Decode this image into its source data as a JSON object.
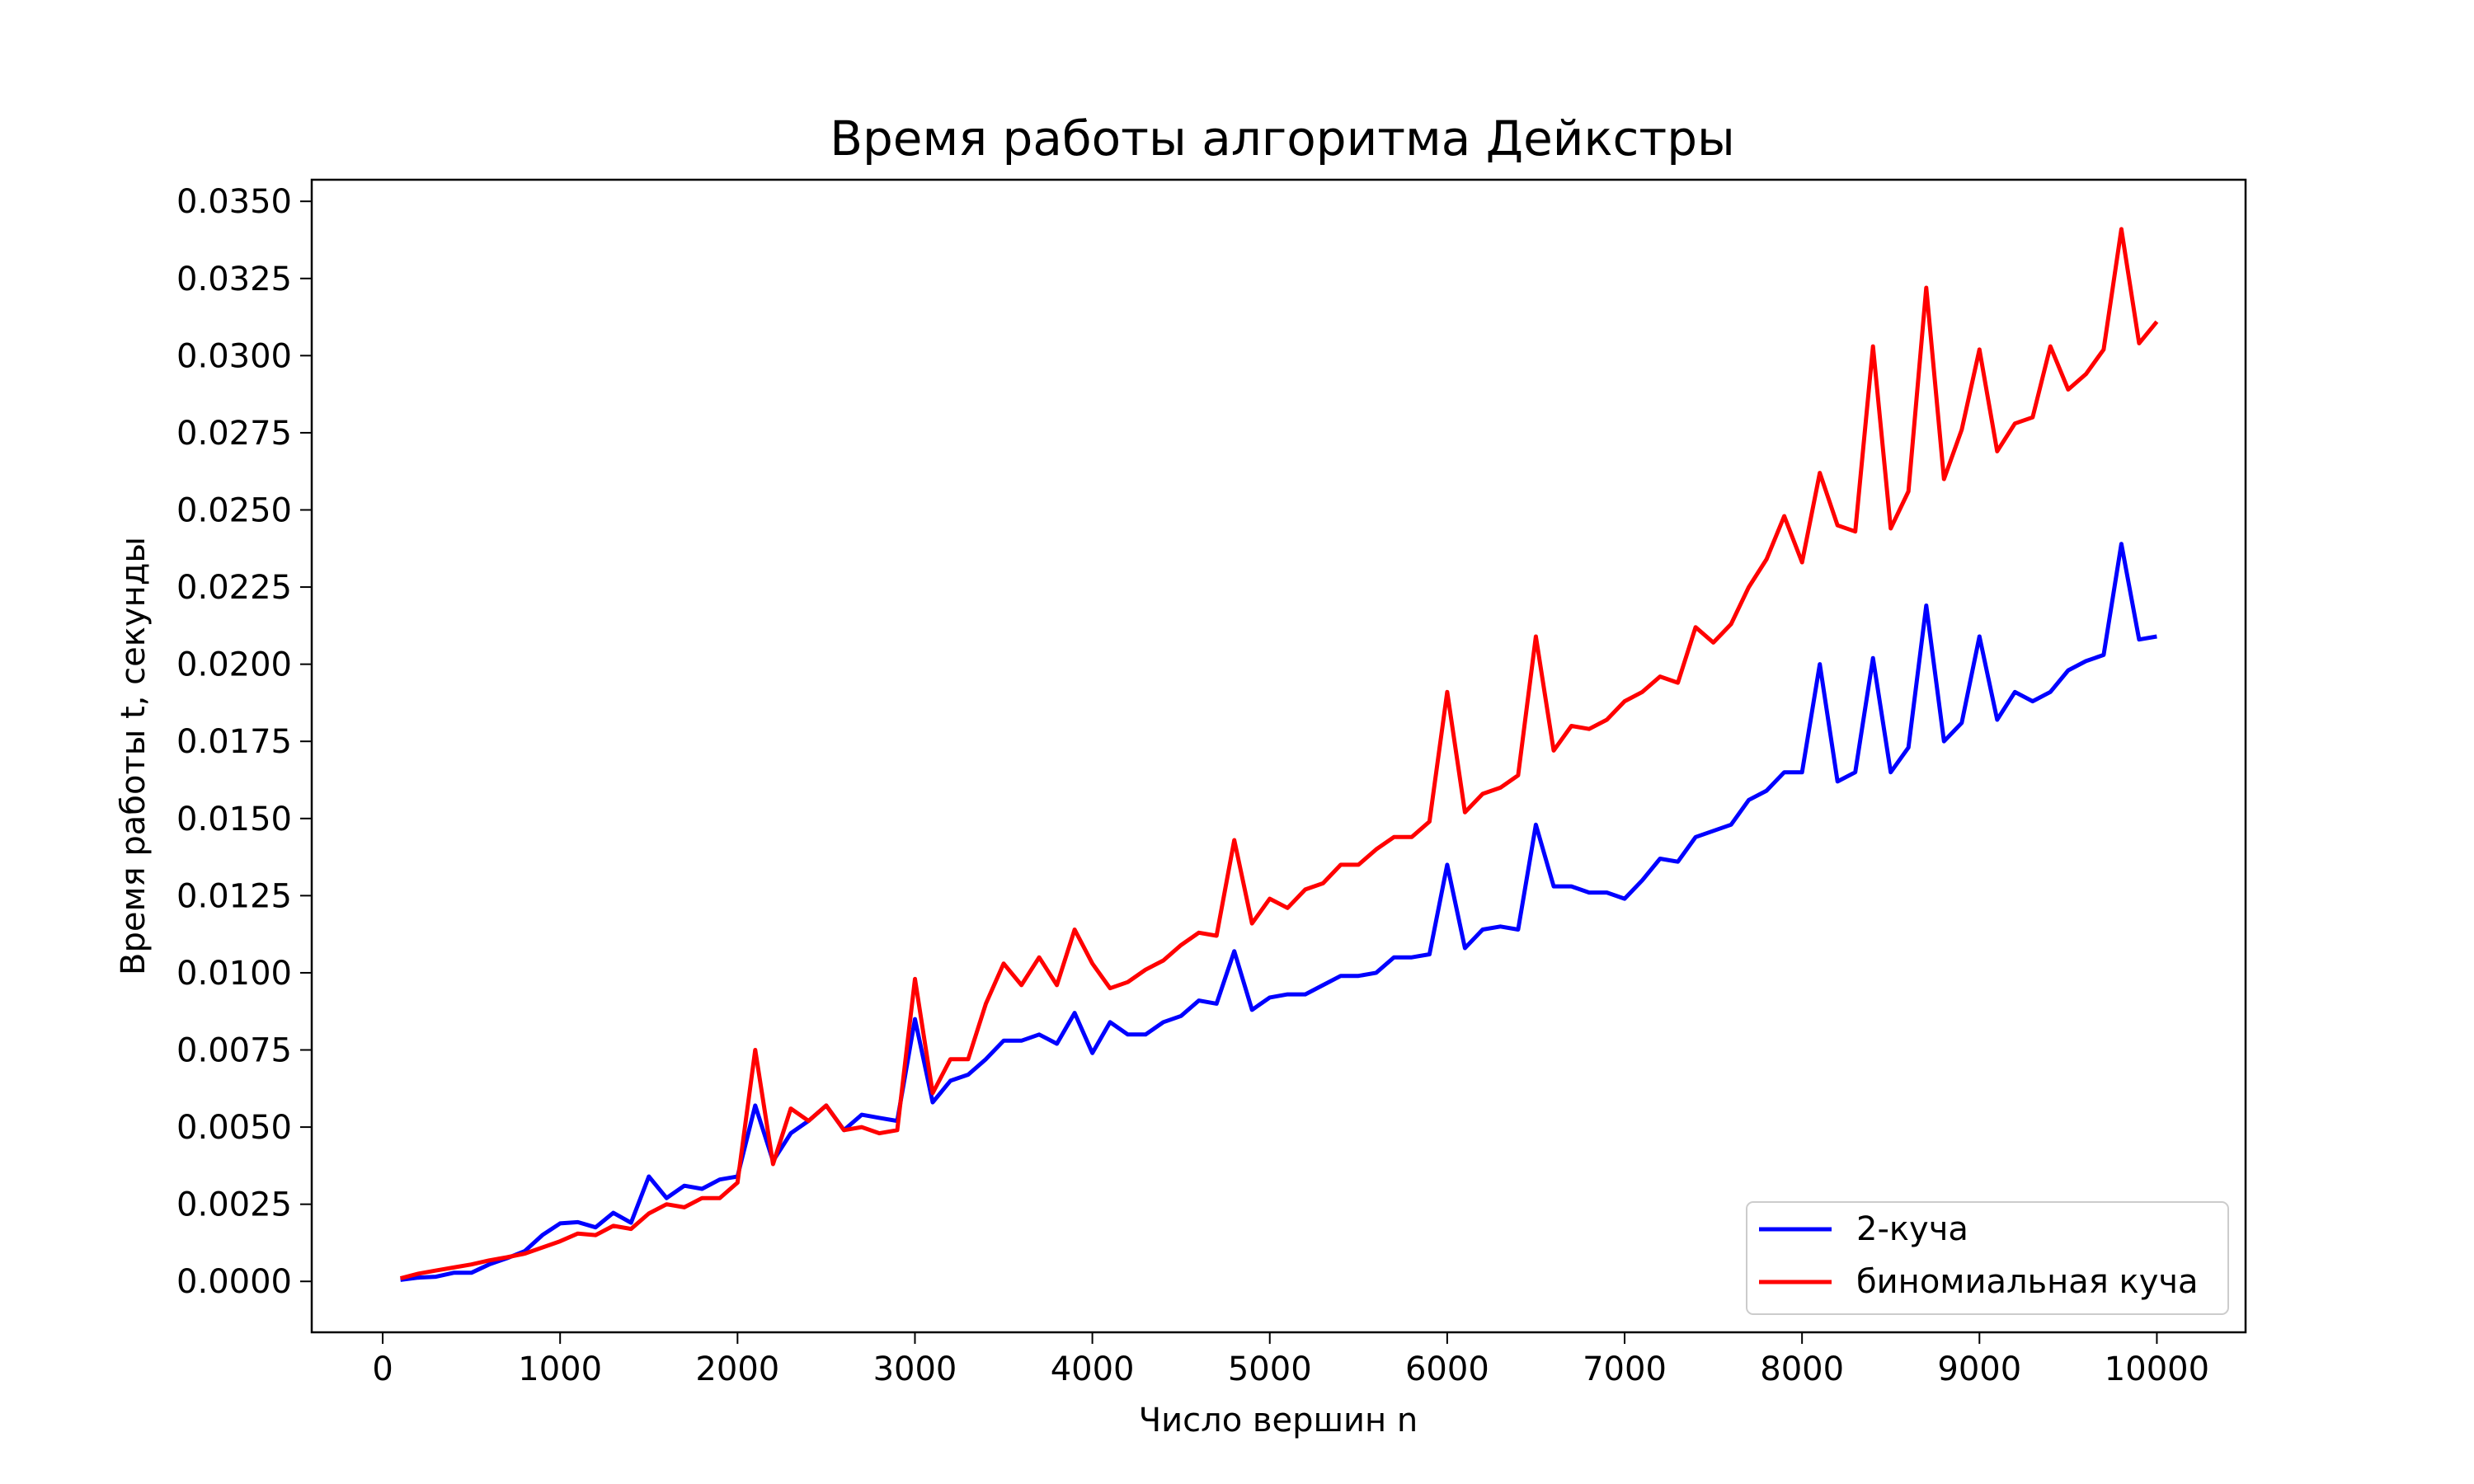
{
  "chart_data": {
    "type": "line",
    "title": "Время работы алгоритма Дейкстры",
    "xlabel": "Число вершин n",
    "ylabel": "Время работы t, секунды",
    "xlim": [
      -400,
      10500
    ],
    "ylim": [
      -0.00165,
      0.0357
    ],
    "xticks": [
      0,
      1000,
      2000,
      3000,
      4000,
      5000,
      6000,
      7000,
      8000,
      9000,
      10000
    ],
    "xtick_labels": [
      "0",
      "1000",
      "2000",
      "3000",
      "4000",
      "5000",
      "6000",
      "7000",
      "8000",
      "9000",
      "10000"
    ],
    "yticks": [
      0,
      0.0025,
      0.005,
      0.0075,
      0.01,
      0.0125,
      0.015,
      0.0175,
      0.02,
      0.0225,
      0.025,
      0.0275,
      0.03,
      0.0325,
      0.035
    ],
    "ytick_labels": [
      "0.0000",
      "0.0025",
      "0.0050",
      "0.0075",
      "0.0100",
      "0.0125",
      "0.0150",
      "0.0175",
      "0.0200",
      "0.0225",
      "0.0250",
      "0.0275",
      "0.0300",
      "0.0325",
      "0.0350"
    ],
    "grid": false,
    "legend_position": "lower-right",
    "x": [
      100,
      200,
      300,
      400,
      500,
      600,
      700,
      800,
      900,
      1000,
      1100,
      1200,
      1300,
      1400,
      1500,
      1600,
      1700,
      1800,
      1900,
      2000,
      2100,
      2200,
      2300,
      2400,
      2500,
      2600,
      2700,
      2800,
      2900,
      3000,
      3100,
      3200,
      3300,
      3400,
      3500,
      3600,
      3700,
      3800,
      3900,
      4000,
      4100,
      4200,
      4300,
      4400,
      4500,
      4600,
      4700,
      4800,
      4900,
      5000,
      5100,
      5200,
      5300,
      5400,
      5500,
      5600,
      5700,
      5800,
      5900,
      6000,
      6100,
      6200,
      6300,
      6400,
      6500,
      6600,
      6700,
      6800,
      6900,
      7000,
      7100,
      7200,
      7300,
      7400,
      7500,
      7600,
      7700,
      7800,
      7900,
      8000,
      8100,
      8200,
      8300,
      8400,
      8500,
      8600,
      8700,
      8800,
      8900,
      9000,
      9100,
      9200,
      9300,
      9400,
      9500,
      9600,
      9700,
      9800,
      9900,
      10000
    ],
    "series": [
      {
        "name": "2-куча",
        "color": "#0000ff",
        "values": [
          5e-05,
          0.00012,
          0.00015,
          0.00028,
          0.00028,
          0.00055,
          0.00075,
          0.00098,
          0.0015,
          0.00188,
          0.00192,
          0.00175,
          0.00222,
          0.0019,
          0.0034,
          0.0027,
          0.0031,
          0.003,
          0.0033,
          0.0034,
          0.0057,
          0.0039,
          0.0048,
          0.0052,
          0.0057,
          0.0049,
          0.0054,
          0.0053,
          0.0052,
          0.0085,
          0.0058,
          0.0065,
          0.0067,
          0.0072,
          0.0078,
          0.0078,
          0.008,
          0.0077,
          0.0087,
          0.0074,
          0.0084,
          0.008,
          0.008,
          0.0084,
          0.0086,
          0.0091,
          0.009,
          0.0107,
          0.0088,
          0.0092,
          0.0093,
          0.0093,
          0.0096,
          0.0099,
          0.0099,
          0.01,
          0.0105,
          0.0105,
          0.0106,
          0.0135,
          0.0108,
          0.0114,
          0.0115,
          0.0114,
          0.0148,
          0.0128,
          0.0128,
          0.0126,
          0.0126,
          0.0124,
          0.013,
          0.0137,
          0.0136,
          0.0144,
          0.0146,
          0.0148,
          0.0156,
          0.0159,
          0.0165,
          0.0165,
          0.02,
          0.0162,
          0.0165,
          0.0202,
          0.0165,
          0.0173,
          0.0219,
          0.0175,
          0.0181,
          0.0209,
          0.0182,
          0.0191,
          0.0188,
          0.0191,
          0.0198,
          0.0201,
          0.0203,
          0.0239,
          0.0208,
          0.0209
        ]
      },
      {
        "name": "биномиальная куча",
        "color": "#ff0000",
        "values": [
          0.0001,
          0.00025,
          0.00035,
          0.00045,
          0.00055,
          0.00068,
          0.00078,
          0.0009,
          0.0011,
          0.0013,
          0.00155,
          0.0015,
          0.0018,
          0.0017,
          0.0022,
          0.0025,
          0.0024,
          0.0027,
          0.0027,
          0.0032,
          0.0075,
          0.0038,
          0.0056,
          0.0052,
          0.0057,
          0.0049,
          0.005,
          0.0048,
          0.0049,
          0.0098,
          0.0061,
          0.0072,
          0.0072,
          0.009,
          0.0103,
          0.0096,
          0.0105,
          0.0096,
          0.0114,
          0.0103,
          0.0095,
          0.0097,
          0.0101,
          0.0104,
          0.0109,
          0.0113,
          0.0112,
          0.0143,
          0.0116,
          0.0124,
          0.0121,
          0.0127,
          0.0129,
          0.0135,
          0.0135,
          0.014,
          0.0144,
          0.0144,
          0.0149,
          0.0191,
          0.0152,
          0.0158,
          0.016,
          0.0164,
          0.0209,
          0.0172,
          0.018,
          0.0179,
          0.0182,
          0.0188,
          0.0191,
          0.0196,
          0.0194,
          0.0212,
          0.0207,
          0.0213,
          0.0225,
          0.0234,
          0.0248,
          0.0233,
          0.0262,
          0.0245,
          0.0243,
          0.0303,
          0.0244,
          0.0256,
          0.0322,
          0.026,
          0.0276,
          0.0302,
          0.0269,
          0.0278,
          0.028,
          0.0303,
          0.0289,
          0.0294,
          0.0302,
          0.0341,
          0.0304,
          0.0311
        ]
      }
    ]
  }
}
